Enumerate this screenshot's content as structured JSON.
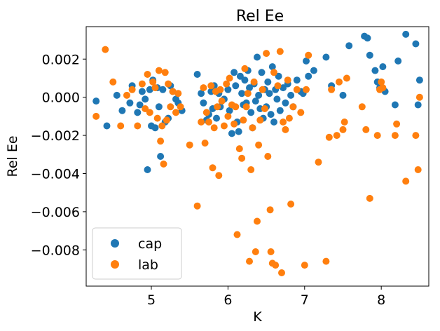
{
  "chart_data": {
    "type": "scatter",
    "title": "Rel Ee",
    "xlabel": "K",
    "ylabel": "Rel Ee",
    "xlim": [
      4.15,
      8.62
    ],
    "ylim": [
      -0.0099,
      0.0037
    ],
    "xticks": [
      5,
      6,
      7,
      8
    ],
    "yticks": [
      -0.008,
      -0.006,
      -0.004,
      -0.002,
      0.0,
      0.002
    ],
    "ytick_labels": [
      "−0.008",
      "−0.006",
      "−0.004",
      "−0.002",
      "0.000",
      "0.002"
    ],
    "xtick_labels": [
      "5",
      "6",
      "7",
      "8"
    ],
    "legend_position": "lower-left",
    "grid": false,
    "series": [
      {
        "name": "cap",
        "color": "#1f77b4",
        "points": [
          [
            4.28,
            -0.0002
          ],
          [
            4.42,
            -0.0015
          ],
          [
            4.55,
            0.0001
          ],
          [
            4.62,
            -0.0007
          ],
          [
            4.72,
            -0.0003
          ],
          [
            4.75,
            0.0006
          ],
          [
            4.82,
            -0.0008
          ],
          [
            4.85,
            -0.0004
          ],
          [
            4.88,
            0.0003
          ],
          [
            4.92,
            -0.0001
          ],
          [
            4.95,
            -0.0038
          ],
          [
            4.98,
            0.0004
          ],
          [
            5.0,
            -0.0015
          ],
          [
            5.02,
            0.0009
          ],
          [
            5.05,
            -0.0016
          ],
          [
            5.08,
            0.0005
          ],
          [
            5.1,
            -0.0005
          ],
          [
            5.12,
            -0.0031
          ],
          [
            5.15,
            0.0004
          ],
          [
            5.18,
            -0.0013
          ],
          [
            5.22,
            -0.0011
          ],
          [
            5.25,
            0.0006
          ],
          [
            5.28,
            0.0003
          ],
          [
            5.32,
            -0.0001
          ],
          [
            5.35,
            -0.0003
          ],
          [
            5.4,
            -0.0007
          ],
          [
            5.6,
            0.0012
          ],
          [
            5.65,
            0.0002
          ],
          [
            5.68,
            -0.0003
          ],
          [
            5.72,
            -0.0012
          ],
          [
            5.75,
            -0.0009
          ],
          [
            5.78,
            0.0003
          ],
          [
            5.8,
            -0.0006
          ],
          [
            5.82,
            0.0006
          ],
          [
            5.85,
            -0.0011
          ],
          [
            5.88,
            0.0002
          ],
          [
            5.9,
            -0.0005
          ],
          [
            5.95,
            -0.0001
          ],
          [
            6.0,
            0.0004
          ],
          [
            6.02,
            -0.0007
          ],
          [
            6.05,
            -0.0019
          ],
          [
            6.08,
            0.0013
          ],
          [
            6.1,
            0.0006
          ],
          [
            6.12,
            -0.0013
          ],
          [
            6.14,
            -0.0018
          ],
          [
            6.16,
            0.0011
          ],
          [
            6.18,
            0.0002
          ],
          [
            6.2,
            -0.0004
          ],
          [
            6.22,
            0.0009
          ],
          [
            6.24,
            -0.0003
          ],
          [
            6.26,
            0.0014
          ],
          [
            6.28,
            0.0005
          ],
          [
            6.3,
            -0.0008
          ],
          [
            6.32,
            -0.0016
          ],
          [
            6.34,
            0.0007
          ],
          [
            6.36,
            -0.0002
          ],
          [
            6.38,
            0.0021
          ],
          [
            6.4,
            0.0001
          ],
          [
            6.42,
            -0.0006
          ],
          [
            6.44,
            0.0013
          ],
          [
            6.46,
            -0.0011
          ],
          [
            6.48,
            0.0004
          ],
          [
            6.5,
            -0.0005
          ],
          [
            6.52,
            0.0008
          ],
          [
            6.54,
            0.0002
          ],
          [
            6.56,
            -0.0009
          ],
          [
            6.58,
            0.0016
          ],
          [
            6.6,
            -0.0013
          ],
          [
            6.62,
            0.0004
          ],
          [
            6.64,
            -0.0001
          ],
          [
            6.66,
            0.0011
          ],
          [
            6.68,
            -0.0007
          ],
          [
            6.72,
            0.0005
          ],
          [
            6.75,
            -0.0003
          ],
          [
            6.78,
            0.0007
          ],
          [
            6.82,
            0.0001
          ],
          [
            6.85,
            -0.0005
          ],
          [
            6.9,
            0.0009
          ],
          [
            6.95,
            0.0003
          ],
          [
            6.98,
            0.0002
          ],
          [
            7.02,
            0.0019
          ],
          [
            7.05,
            0.0011
          ],
          [
            7.12,
            0.0014
          ],
          [
            7.28,
            0.0021
          ],
          [
            7.35,
            0.0006
          ],
          [
            7.5,
            0.0001
          ],
          [
            7.58,
            0.0027
          ],
          [
            7.78,
            0.0032
          ],
          [
            7.82,
            0.0031
          ],
          [
            7.85,
            0.0022
          ],
          [
            7.92,
            0.0014
          ],
          [
            7.95,
            0.0008
          ],
          [
            7.98,
            0.0005
          ],
          [
            8.02,
            0.0016
          ],
          [
            8.05,
            0.0003
          ],
          [
            8.18,
            -0.0004
          ],
          [
            8.22,
            0.0019
          ],
          [
            8.32,
            0.0033
          ],
          [
            8.45,
            0.0028
          ],
          [
            8.48,
            -0.0004
          ],
          [
            8.5,
            0.0009
          ]
        ]
      },
      {
        "name": "lab",
        "color": "#ff7f0e",
        "points": [
          [
            4.28,
            -0.001
          ],
          [
            4.4,
            0.0025
          ],
          [
            4.5,
            0.0008
          ],
          [
            4.6,
            -0.0015
          ],
          [
            4.68,
            0.0001
          ],
          [
            4.75,
            0.0004
          ],
          [
            4.82,
            -0.0015
          ],
          [
            4.88,
            0.0007
          ],
          [
            4.92,
            -0.0006
          ],
          [
            4.95,
            0.0012
          ],
          [
            4.98,
            -0.0008
          ],
          [
            5.02,
            0.0008
          ],
          [
            5.05,
            0.0005
          ],
          [
            5.08,
            -0.0011
          ],
          [
            5.1,
            0.0014
          ],
          [
            5.12,
            -0.0023
          ],
          [
            5.14,
            -0.0015
          ],
          [
            5.16,
            -0.0035
          ],
          [
            5.18,
            0.0013
          ],
          [
            5.2,
            -0.0012
          ],
          [
            5.22,
            0.0007
          ],
          [
            5.25,
            -0.0005
          ],
          [
            5.28,
            0.0003
          ],
          [
            5.32,
            -0.0008
          ],
          [
            5.35,
            0.0002
          ],
          [
            5.38,
            -0.0005
          ],
          [
            5.5,
            -0.0025
          ],
          [
            5.6,
            -0.0057
          ],
          [
            5.65,
            -0.0013
          ],
          [
            5.68,
            0.0005
          ],
          [
            5.7,
            -0.0024
          ],
          [
            5.72,
            -0.0008
          ],
          [
            5.75,
            -0.0013
          ],
          [
            5.78,
            0.0006
          ],
          [
            5.8,
            -0.0037
          ],
          [
            5.82,
            -0.0016
          ],
          [
            5.84,
            0.0003
          ],
          [
            5.86,
            -0.0005
          ],
          [
            5.88,
            -0.0041
          ],
          [
            5.9,
            0.0004
          ],
          [
            5.92,
            -0.0002
          ],
          [
            5.95,
            -0.0015
          ],
          [
            5.98,
            0.0007
          ],
          [
            6.0,
            -0.001
          ],
          [
            6.02,
            0.001
          ],
          [
            6.05,
            -0.0004
          ],
          [
            6.08,
            -0.0014
          ],
          [
            6.1,
            -0.0005
          ],
          [
            6.12,
            -0.0072
          ],
          [
            6.15,
            -0.0027
          ],
          [
            6.18,
            -0.0032
          ],
          [
            6.2,
            -0.0012
          ],
          [
            6.22,
            0.0015
          ],
          [
            6.24,
            -0.0005
          ],
          [
            6.26,
            0.0002
          ],
          [
            6.28,
            -0.0086
          ],
          [
            6.3,
            -0.0038
          ],
          [
            6.32,
            -0.0016
          ],
          [
            6.34,
            0.0008
          ],
          [
            6.36,
            -0.0081
          ],
          [
            6.38,
            -0.0065
          ],
          [
            6.4,
            -0.0025
          ],
          [
            6.42,
            -0.0012
          ],
          [
            6.45,
            0.0004
          ],
          [
            6.48,
            -0.0006
          ],
          [
            6.5,
            0.0023
          ],
          [
            6.52,
            -0.0031
          ],
          [
            6.55,
            -0.0059
          ],
          [
            6.56,
            -0.0081
          ],
          [
            6.58,
            -0.0087
          ],
          [
            6.6,
            0.0013
          ],
          [
            6.62,
            -0.0088
          ],
          [
            6.65,
            0.0006
          ],
          [
            6.68,
            0.0024
          ],
          [
            6.7,
            -0.0092
          ],
          [
            6.72,
            -0.0013
          ],
          [
            6.75,
            -0.0017
          ],
          [
            6.78,
            0.0009
          ],
          [
            6.8,
            -0.0011
          ],
          [
            6.82,
            -0.0056
          ],
          [
            6.85,
            -0.0005
          ],
          [
            6.9,
            0.0004
          ],
          [
            6.95,
            -0.0008
          ],
          [
            7.0,
            -0.0088
          ],
          [
            7.02,
            0.0004
          ],
          [
            7.05,
            0.0022
          ],
          [
            7.18,
            -0.0034
          ],
          [
            7.28,
            -0.0086
          ],
          [
            7.32,
            -0.0021
          ],
          [
            7.35,
            0.0004
          ],
          [
            7.42,
            -0.002
          ],
          [
            7.45,
            0.0008
          ],
          [
            7.5,
            -0.0017
          ],
          [
            7.52,
            -0.0013
          ],
          [
            7.55,
            0.001
          ],
          [
            7.75,
            -0.0005
          ],
          [
            7.8,
            -0.0017
          ],
          [
            7.85,
            -0.0053
          ],
          [
            7.95,
            -0.002
          ],
          [
            7.98,
            0.0004
          ],
          [
            8.0,
            0.0008
          ],
          [
            8.02,
            0.0005
          ],
          [
            8.18,
            -0.002
          ],
          [
            8.2,
            -0.0014
          ],
          [
            8.32,
            -0.0044
          ],
          [
            8.45,
            -0.002
          ],
          [
            8.48,
            -0.0038
          ],
          [
            8.5,
            0.0
          ]
        ]
      }
    ]
  }
}
